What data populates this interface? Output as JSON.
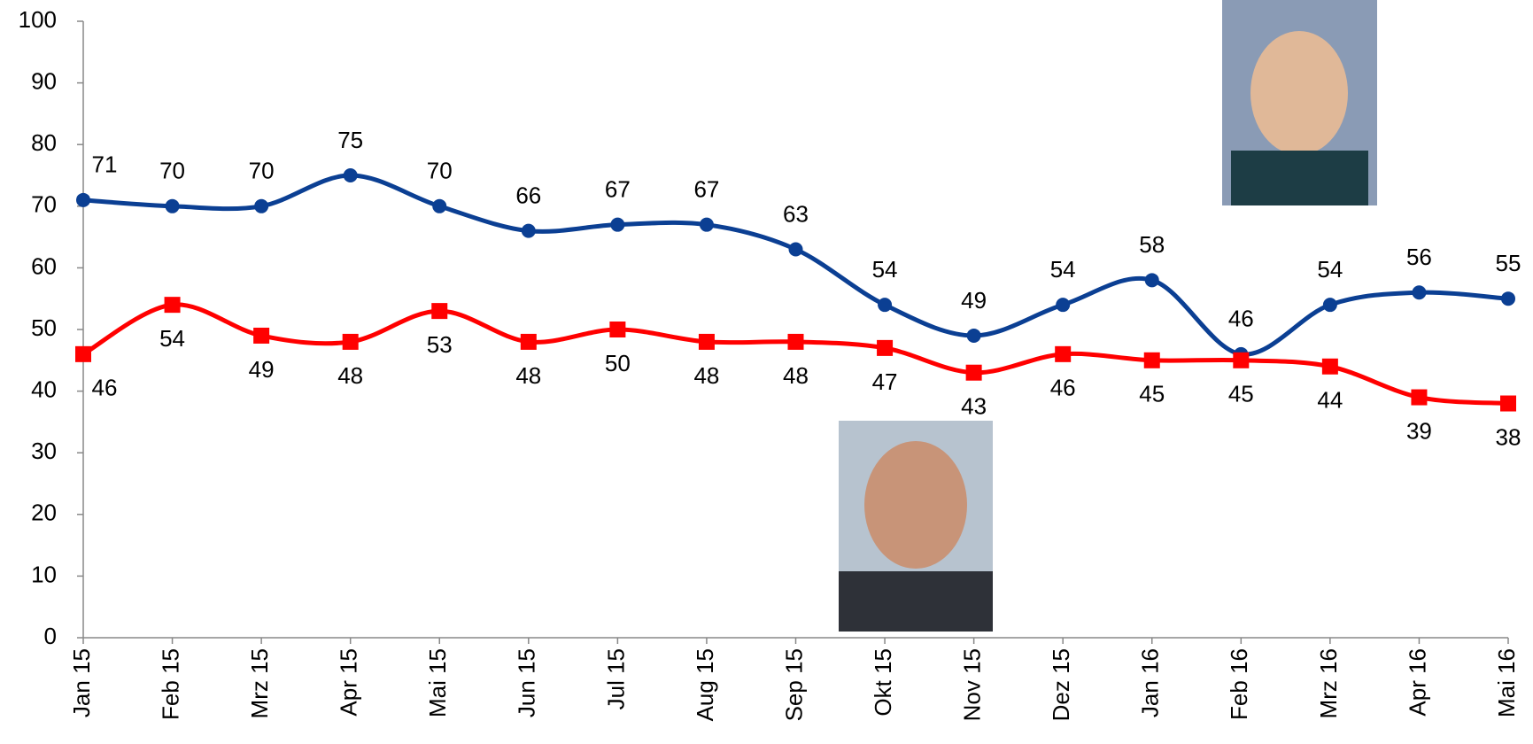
{
  "chart_data": {
    "type": "line",
    "categories": [
      "Jan 15",
      "Feb 15",
      "Mrz 15",
      "Apr 15",
      "Mai 15",
      "Jun 15",
      "Jul 15",
      "Aug 15",
      "Sep 15",
      "Okt 15",
      "Nov 15",
      "Dez 15",
      "Jan 16",
      "Feb 16",
      "Mrz 16",
      "Apr 16",
      "Mai 16"
    ],
    "series": [
      {
        "color": "#0b3f93",
        "marker": "circle",
        "values": [
          71,
          70,
          70,
          75,
          70,
          66,
          67,
          67,
          63,
          54,
          49,
          54,
          58,
          46,
          54,
          56,
          55
        ]
      },
      {
        "color": "#ff0000",
        "marker": "square",
        "values": [
          46,
          54,
          49,
          48,
          53,
          48,
          50,
          48,
          48,
          47,
          43,
          46,
          45,
          45,
          44,
          39,
          38
        ]
      }
    ],
    "ylim": [
      0,
      100
    ],
    "yticks": [
      0,
      10,
      20,
      30,
      40,
      50,
      60,
      70,
      80,
      90,
      100
    ],
    "grid": false
  }
}
